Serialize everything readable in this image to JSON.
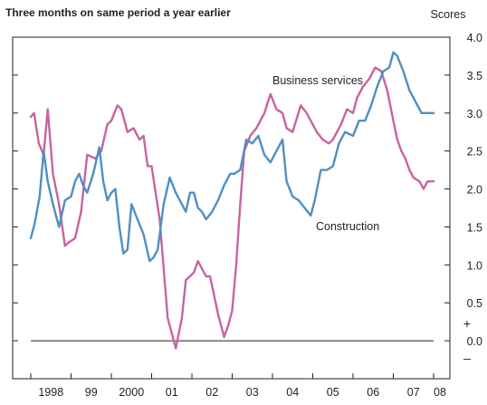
{
  "chart_data": {
    "type": "line",
    "subtitle": "Three months on same period a year earlier",
    "ylabel": "Scores",
    "ylim": [
      -0.5,
      4.0
    ],
    "yticks": [
      4.0,
      3.5,
      3.0,
      2.5,
      2.0,
      1.5,
      1.0,
      0.5,
      0.0,
      -0.5
    ],
    "ytick_labels": [
      "4.0",
      "3.5",
      "3.0",
      "2.5",
      "2.0",
      "1.5",
      "1.0",
      "0.5",
      "0.0",
      ""
    ],
    "sign_labels": {
      "plus": "+",
      "minus": "–"
    },
    "xlim": [
      1998.0,
      2008.0
    ],
    "xtick_years": [
      1998,
      1999,
      2000,
      2001,
      2002,
      2003,
      2004,
      2005,
      2006,
      2007,
      2008
    ],
    "xtick_labels": [
      "1998",
      "99",
      "2000",
      "01",
      "02",
      "03",
      "04",
      "05",
      "06",
      "07",
      "08"
    ],
    "grid": false,
    "zero_line": true,
    "series": [
      {
        "name": "Business services",
        "color": "#c7649e",
        "x": [
          1998.0,
          1998.08,
          1998.2,
          1998.32,
          1998.42,
          1998.55,
          1998.7,
          1998.85,
          1998.95,
          1999.1,
          1999.25,
          1999.4,
          1999.6,
          1999.75,
          1999.9,
          2000.0,
          2000.15,
          2000.25,
          2000.4,
          2000.55,
          2000.7,
          2000.8,
          2000.9,
          2001.0,
          2001.1,
          2001.2,
          2001.3,
          2001.4,
          2001.6,
          2001.75,
          2001.85,
          2001.95,
          2002.05,
          2002.15,
          2002.25,
          2002.35,
          2002.45,
          2002.55,
          2002.65,
          2002.8,
          2002.9,
          2003.0,
          2003.1,
          2003.2,
          2003.3,
          2003.45,
          2003.6,
          2003.8,
          2003.95,
          2004.1,
          2004.25,
          2004.35,
          2004.5,
          2004.7,
          2004.85,
          2005.0,
          2005.1,
          2005.25,
          2005.4,
          2005.5,
          2005.7,
          2005.85,
          2006.0,
          2006.1,
          2006.25,
          2006.4,
          2006.55,
          2006.7,
          2006.85,
          2007.0,
          2007.1,
          2007.2,
          2007.3,
          2007.4,
          2007.5,
          2007.65,
          2007.75,
          2007.85,
          2008.0
        ],
        "y": [
          2.95,
          3.0,
          2.6,
          2.45,
          3.05,
          2.2,
          1.8,
          1.25,
          1.3,
          1.35,
          1.7,
          2.45,
          2.4,
          2.5,
          2.85,
          2.9,
          3.1,
          3.05,
          2.75,
          2.8,
          2.65,
          2.7,
          2.3,
          2.3,
          1.95,
          1.6,
          0.95,
          0.3,
          -0.1,
          0.3,
          0.8,
          0.85,
          0.9,
          1.05,
          0.95,
          0.85,
          0.85,
          0.6,
          0.35,
          0.05,
          0.2,
          0.4,
          1.0,
          1.8,
          2.5,
          2.7,
          2.8,
          3.0,
          3.25,
          3.05,
          3.0,
          2.8,
          2.75,
          3.1,
          3.0,
          2.85,
          2.75,
          2.65,
          2.6,
          2.65,
          2.85,
          3.05,
          3.0,
          3.2,
          3.35,
          3.45,
          3.6,
          3.55,
          3.3,
          2.9,
          2.65,
          2.5,
          2.4,
          2.25,
          2.15,
          2.1,
          2.0,
          2.1,
          2.1
        ]
      },
      {
        "name": "Construction",
        "color": "#4f8fc3",
        "x": [
          1998.0,
          1998.1,
          1998.22,
          1998.32,
          1998.42,
          1998.55,
          1998.7,
          1998.85,
          1999.0,
          1999.1,
          1999.2,
          1999.3,
          1999.4,
          1999.55,
          1999.7,
          1999.8,
          1999.9,
          2000.0,
          2000.1,
          2000.2,
          2000.3,
          2000.4,
          2000.5,
          2000.65,
          2000.8,
          2000.95,
          2001.05,
          2001.15,
          2001.3,
          2001.45,
          2001.6,
          2001.75,
          2001.85,
          2001.95,
          2002.05,
          2002.15,
          2002.25,
          2002.35,
          2002.5,
          2002.65,
          2002.8,
          2002.95,
          2003.05,
          2003.2,
          2003.35,
          2003.5,
          2003.65,
          2003.8,
          2003.95,
          2004.1,
          2004.25,
          2004.35,
          2004.5,
          2004.65,
          2004.8,
          2004.95,
          2005.05,
          2005.2,
          2005.35,
          2005.5,
          2005.65,
          2005.8,
          2006.0,
          2006.15,
          2006.3,
          2006.45,
          2006.6,
          2006.75,
          2006.9,
          2007.0,
          2007.1,
          2007.25,
          2007.4,
          2007.55,
          2007.7,
          2007.85,
          2008.0
        ],
        "y": [
          1.35,
          1.55,
          1.9,
          2.5,
          2.1,
          1.8,
          1.5,
          1.85,
          1.9,
          2.1,
          2.2,
          2.05,
          1.95,
          2.2,
          2.55,
          2.1,
          1.85,
          1.95,
          2.0,
          1.5,
          1.15,
          1.2,
          1.8,
          1.6,
          1.4,
          1.05,
          1.1,
          1.2,
          1.8,
          2.15,
          1.95,
          1.8,
          1.7,
          1.95,
          1.95,
          1.75,
          1.7,
          1.6,
          1.7,
          1.85,
          2.05,
          2.2,
          2.2,
          2.25,
          2.65,
          2.6,
          2.7,
          2.45,
          2.35,
          2.5,
          2.65,
          2.1,
          1.9,
          1.85,
          1.75,
          1.65,
          1.85,
          2.25,
          2.25,
          2.3,
          2.6,
          2.75,
          2.7,
          2.9,
          2.9,
          3.1,
          3.35,
          3.55,
          3.6,
          3.8,
          3.75,
          3.55,
          3.3,
          3.15,
          3.0,
          3.0,
          3.0
        ]
      }
    ],
    "annotations": [
      {
        "text": "Business services",
        "series": "Business services"
      },
      {
        "text": "Construction",
        "series": "Construction"
      }
    ]
  }
}
